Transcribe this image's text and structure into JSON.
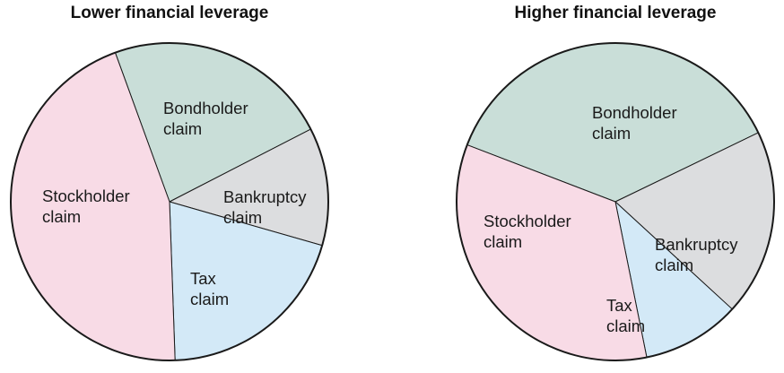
{
  "chart_data": [
    {
      "type": "pie",
      "title": "Lower financial leverage",
      "slices": [
        {
          "label_lines": [
            "Bondholder",
            "claim"
          ],
          "value": 23,
          "color": "#c9ded8"
        },
        {
          "label_lines": [
            "Bankruptcy",
            "claim"
          ],
          "value": 12,
          "color": "#dcdddf"
        },
        {
          "label_lines": [
            "Tax",
            "claim"
          ],
          "value": 20,
          "color": "#d3e9f7"
        },
        {
          "label_lines": [
            "Stockholder",
            "claim"
          ],
          "value": 45,
          "color": "#f8dbe6"
        }
      ]
    },
    {
      "type": "pie",
      "title": "Higher financial leverage",
      "slices": [
        {
          "label_lines": [
            "Bondholder",
            "claim"
          ],
          "value": 37,
          "color": "#c9ded8"
        },
        {
          "label_lines": [
            "Bankruptcy",
            "claim"
          ],
          "value": 19,
          "color": "#dcdddf"
        },
        {
          "label_lines": [
            "Tax",
            "claim"
          ],
          "value": 10,
          "color": "#d3e9f7"
        },
        {
          "label_lines": [
            "Stockholder",
            "claim"
          ],
          "value": 34,
          "color": "#f8dbe6"
        }
      ]
    }
  ]
}
